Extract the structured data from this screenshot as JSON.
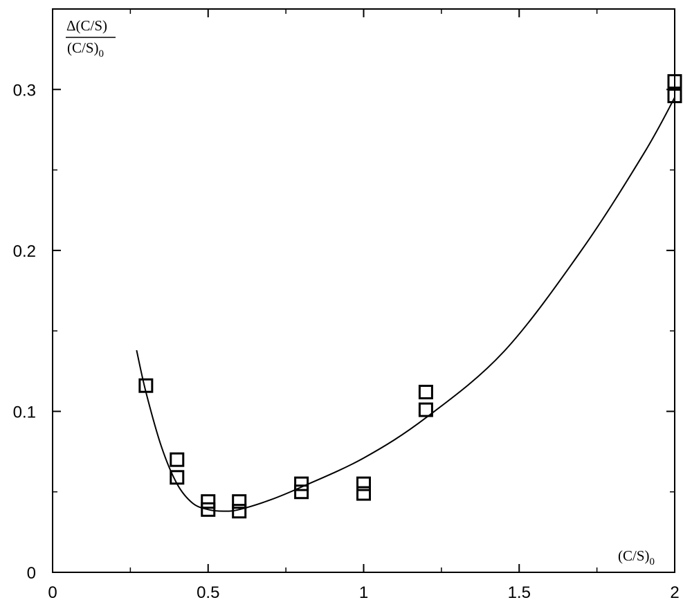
{
  "chart_data": {
    "type": "scatter",
    "title": "",
    "xlabel": {
      "main": "(C/S)",
      "sub": "0"
    },
    "ylabel": {
      "numerator": "Δ(C/S)",
      "denominator_main": "(C/S)",
      "denominator_sub": "0"
    },
    "xlim": [
      0,
      2
    ],
    "ylim": [
      0,
      0.35
    ],
    "x_ticks": [
      {
        "value": 0,
        "label": "0"
      },
      {
        "value": 0.5,
        "label": "0.5"
      },
      {
        "value": 1,
        "label": "1"
      },
      {
        "value": 1.5,
        "label": "1.5"
      },
      {
        "value": 2,
        "label": "2"
      }
    ],
    "x_minor_ticks": [
      0.25,
      0.75,
      1.25,
      1.75
    ],
    "y_ticks": [
      {
        "value": 0,
        "label": "0"
      },
      {
        "value": 0.1,
        "label": "0.1"
      },
      {
        "value": 0.2,
        "label": "0.2"
      },
      {
        "value": 0.3,
        "label": "0.3"
      }
    ],
    "y_minor_ticks": [
      0.05,
      0.15,
      0.25
    ],
    "grid": false,
    "legend": "none",
    "marker": "open-square",
    "series": [
      {
        "kind": "points",
        "x": [
          0.3,
          0.4,
          0.4,
          0.5,
          0.5,
          0.6,
          0.6,
          0.8,
          0.8,
          1.0,
          1.0,
          1.2,
          1.2,
          2.0,
          2.0
        ],
        "y": [
          0.116,
          0.07,
          0.059,
          0.044,
          0.039,
          0.044,
          0.038,
          0.055,
          0.05,
          0.055,
          0.049,
          0.112,
          0.101,
          0.305,
          0.296
        ]
      },
      {
        "kind": "fit-curve",
        "x": [
          0.27,
          0.3,
          0.35,
          0.4,
          0.45,
          0.5,
          0.55,
          0.6,
          0.7,
          0.8,
          1.0,
          1.2,
          1.45,
          1.7,
          1.9,
          2.0
        ],
        "y": [
          0.138,
          0.112,
          0.078,
          0.055,
          0.043,
          0.039,
          0.038,
          0.039,
          0.045,
          0.053,
          0.071,
          0.096,
          0.137,
          0.2,
          0.26,
          0.295
        ]
      }
    ]
  }
}
